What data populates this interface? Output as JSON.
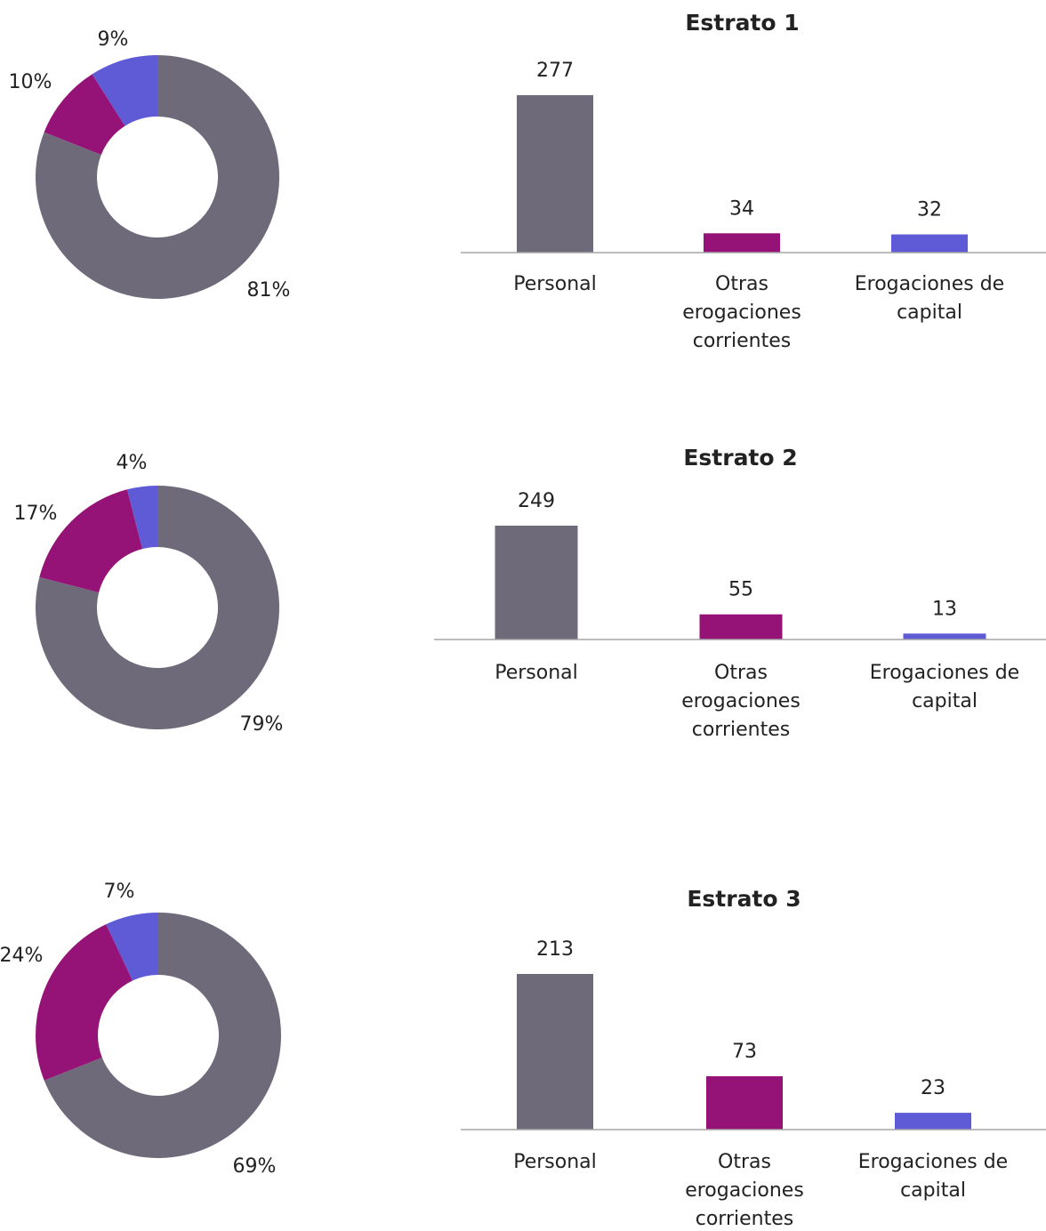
{
  "colors": {
    "Personal": "#6e6a7a",
    "Otras erogaciones corrientes": "#951377",
    "Erogaciones de capital": "#5f5bd6"
  },
  "chart_data": [
    {
      "type": "pie",
      "variant": "donut",
      "slices": [
        {
          "category": "Personal",
          "value": 81,
          "label": "81%"
        },
        {
          "category": "Otras erogaciones corrientes",
          "value": 10,
          "label": "10%"
        },
        {
          "category": "Erogaciones de capital",
          "value": 9,
          "label": "9%"
        }
      ]
    },
    {
      "type": "bar",
      "title": "Estrato 1",
      "categories": [
        [
          "Personal"
        ],
        [
          "Otras",
          "erogaciones",
          "corrientes"
        ],
        [
          "Erogaciones de",
          "capital"
        ]
      ],
      "values": [
        277,
        34,
        32
      ]
    },
    {
      "type": "pie",
      "variant": "donut",
      "slices": [
        {
          "category": "Personal",
          "value": 79,
          "label": "79%"
        },
        {
          "category": "Otras erogaciones corrientes",
          "value": 17,
          "label": "17%"
        },
        {
          "category": "Erogaciones de capital",
          "value": 4,
          "label": "4%"
        }
      ]
    },
    {
      "type": "bar",
      "title": "Estrato 2",
      "categories": [
        [
          "Personal"
        ],
        [
          "Otras",
          "erogaciones",
          "corrientes"
        ],
        [
          "Erogaciones de",
          "capital"
        ]
      ],
      "values": [
        249,
        55,
        13
      ]
    },
    {
      "type": "pie",
      "variant": "donut",
      "slices": [
        {
          "category": "Personal",
          "value": 69,
          "label": "69%"
        },
        {
          "category": "Otras erogaciones corrientes",
          "value": 24,
          "label": "24%"
        },
        {
          "category": "Erogaciones de capital",
          "value": 7,
          "label": "7%"
        }
      ]
    },
    {
      "type": "bar",
      "title": "Estrato 3",
      "categories": [
        [
          "Personal"
        ],
        [
          "Otras",
          "erogaciones",
          "corrientes"
        ],
        [
          "Erogaciones de",
          "capital"
        ]
      ],
      "values": [
        213,
        73,
        23
      ]
    }
  ]
}
